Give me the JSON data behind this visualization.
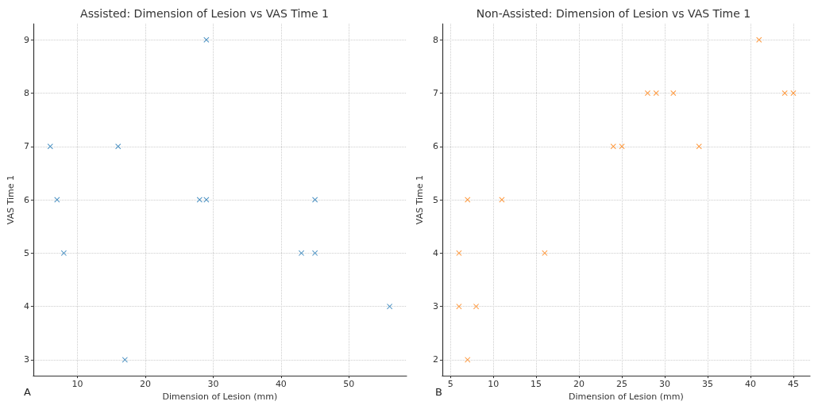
{
  "chart_data": [
    {
      "type": "scatter",
      "title": "Assisted: Dimension of Lesion vs VAS Time 1",
      "xlabel": "Dimension of Lesion (mm)",
      "ylabel": "VAS Time 1",
      "annotations": [
        "A"
      ],
      "x": [
        6,
        7,
        8,
        16,
        17,
        28,
        29,
        29,
        43,
        45,
        45,
        56
      ],
      "series": [
        {
          "color": "#1f77b4",
          "values": [
            7,
            6,
            5,
            7,
            3,
            6,
            6,
            9,
            5,
            5,
            6,
            4
          ]
        }
      ],
      "xlim": [
        3.5,
        58.5
      ],
      "xticks": [
        10,
        20,
        30,
        40,
        50
      ],
      "ylim": [
        2.7,
        9.3
      ],
      "yticks": [
        3,
        4,
        5,
        6,
        7,
        8,
        9
      ],
      "grid": true,
      "marker": "cross"
    },
    {
      "type": "scatter",
      "title": "Non-Assisted: Dimension of Lesion vs VAS Time 1",
      "xlabel": "Dimension of Lesion (mm)",
      "ylabel": "VAS Time 1",
      "annotations": [
        "B"
      ],
      "x": [
        6,
        6,
        7,
        7,
        8,
        11,
        16,
        24,
        25,
        28,
        29,
        31,
        34,
        41,
        44,
        45
      ],
      "series": [
        {
          "color": "#ff7f0e",
          "values": [
            4,
            3,
            5,
            2,
            3,
            5,
            4,
            6,
            6,
            7,
            7,
            7,
            6,
            8,
            7,
            7
          ]
        }
      ],
      "xlim": [
        4.05,
        46.95
      ],
      "xticks": [
        5,
        10,
        15,
        20,
        25,
        30,
        35,
        40,
        45
      ],
      "ylim": [
        1.7,
        8.3
      ],
      "yticks": [
        2,
        3,
        4,
        5,
        6,
        7,
        8
      ],
      "grid": true,
      "marker": "cross"
    }
  ]
}
